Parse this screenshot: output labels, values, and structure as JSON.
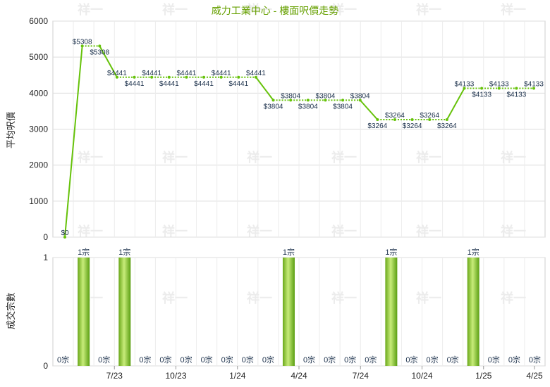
{
  "chart_data": [
    {
      "type": "line",
      "title": "威力工業中心 - 樓面呎價走勢",
      "ylabel": "平均呎價",
      "ylim": [
        0,
        6000
      ],
      "yticks": [
        0,
        1000,
        2000,
        3000,
        4000,
        5000,
        6000
      ],
      "grid": true,
      "series": [
        {
          "values": [
            0,
            5308,
            5308,
            4441,
            4441,
            4441,
            4441,
            4441,
            4441,
            4441,
            4441,
            4441,
            3804,
            3804,
            3804,
            3804,
            3804,
            3804,
            3264,
            3264,
            3264,
            3264,
            3264,
            4133,
            4133,
            4133,
            4133,
            4133
          ],
          "labels": [
            "$0",
            "$5308",
            "$5308",
            "$4441",
            "$4441",
            "$4441",
            "$4441",
            "$4441",
            "$4441",
            "$4441",
            "$4441",
            "$4441",
            "$3804",
            "$3804",
            "$3804",
            "$3804",
            "$3804",
            "$3804",
            "$3264",
            "$3264",
            "$3264",
            "$3264",
            "$3264",
            "$4133",
            "$4133",
            "$4133",
            "$4133",
            "$4133"
          ],
          "color": "#66c20a"
        }
      ]
    },
    {
      "type": "bar",
      "ylabel": "成交宗數",
      "ylim": [
        0,
        1
      ],
      "yticks": [
        0,
        1
      ],
      "series": [
        {
          "values": [
            0,
            1,
            0,
            1,
            0,
            0,
            0,
            0,
            0,
            0,
            0,
            1,
            0,
            0,
            0,
            0,
            1,
            0,
            0,
            0,
            1,
            0,
            0,
            0
          ],
          "labels": [
            "0宗",
            "1宗",
            "0宗",
            "1宗",
            "0宗",
            "0宗",
            "0宗",
            "0宗",
            "0宗",
            "0宗",
            "0宗",
            "1宗",
            "0宗",
            "0宗",
            "0宗",
            "0宗",
            "1宗",
            "0宗",
            "0宗",
            "0宗",
            "1宗",
            "0宗",
            "0宗",
            "0宗"
          ],
          "color": "#6cb81a"
        }
      ],
      "xticks": [
        "7/23",
        "10/23",
        "1/24",
        "4/24",
        "7/24",
        "10/24",
        "1/25",
        "4/25"
      ]
    }
  ],
  "watermark": "祥一"
}
